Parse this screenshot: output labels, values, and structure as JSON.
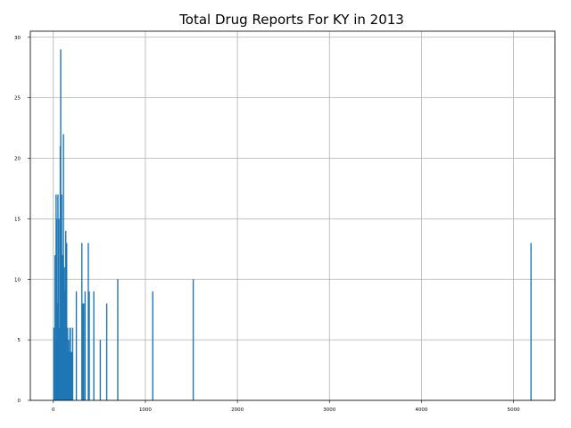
{
  "chart_data": {
    "type": "bar",
    "title": "Total Drug Reports For KY in 2013",
    "xlabel": "",
    "ylabel": "",
    "xlim": [
      -250,
      5450
    ],
    "ylim": [
      0,
      30.5
    ],
    "grid": true,
    "bar_color": "#1f77b4",
    "x_ticks": [
      0,
      1000,
      2000,
      3000,
      4000,
      5000
    ],
    "y_ticks": [
      0,
      5,
      10,
      15,
      20,
      25,
      30
    ],
    "series": [
      {
        "x": [
          5,
          12,
          18,
          25,
          30,
          35,
          40,
          45,
          50,
          55,
          60,
          65,
          70,
          75,
          80,
          85,
          90,
          95,
          100,
          105,
          110,
          115,
          120,
          125,
          130,
          135,
          140,
          145,
          150,
          155,
          160,
          165,
          170,
          175,
          180,
          185,
          190,
          200,
          210,
          250,
          310,
          320,
          330,
          345,
          380,
          390,
          440,
          510,
          580,
          700,
          1080,
          1520,
          5190
        ],
        "values": [
          6,
          6,
          12,
          5,
          17,
          15,
          8,
          8,
          17,
          6,
          15,
          4,
          6,
          21,
          29,
          5,
          17,
          6,
          12,
          9,
          22,
          10,
          11,
          8,
          9,
          14,
          4,
          13,
          4,
          6,
          3,
          5,
          4,
          4,
          6,
          6,
          4,
          4,
          6,
          9,
          13,
          8,
          8,
          9,
          13,
          9,
          9,
          5,
          8,
          10,
          9,
          10,
          13
        ]
      }
    ]
  }
}
